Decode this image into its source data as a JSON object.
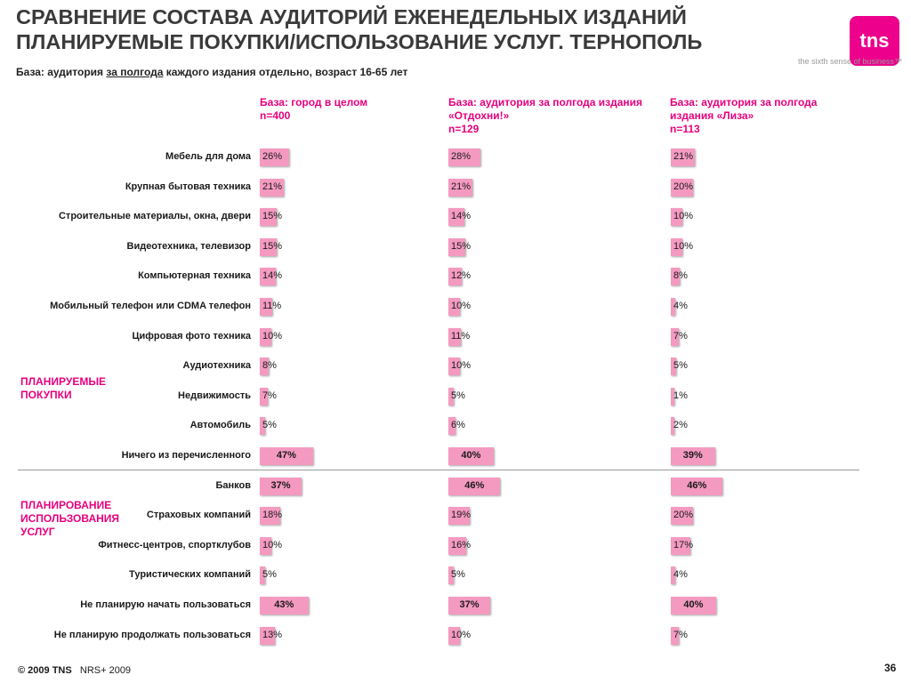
{
  "header": {
    "title_line1": "СРАВНЕНИЕ СОСТАВА АУДИТОРИЙ ЕЖЕНЕДЕЛЬНЫХ ИЗДАНИЙ",
    "title_line2": "ПЛАНИРУЕМЫЕ ПОКУПКИ/ИСПОЛЬЗОВАНИЕ УСЛУГ. ТЕРНОПОЛЬ",
    "subtitle_pre": "База: аудитория",
    "subtitle_underlined": "за полгода",
    "subtitle_post": "каждого издания отдельно, возраст 16-65 лет"
  },
  "brand": {
    "logo_text": "tns",
    "tagline": "the sixth sense of business™",
    "accent_color": "#e6007e",
    "bar_color": "#f49ac1"
  },
  "footer": {
    "copyright": "© 2009 TNS",
    "source": "NRS+ 2009",
    "page_number": "36"
  },
  "chart_data": {
    "type": "bar",
    "orientation": "horizontal",
    "unit": "%",
    "section_labels": [
      {
        "lines": [
          "ПЛАНИРУЕМЫЕ",
          "ПОКУПКИ"
        ]
      },
      {
        "lines": [
          "ПЛАНИРОВАНИЕ",
          "ИСПОЛЬЗОВАНИЯ",
          "УСЛУГ"
        ]
      }
    ],
    "categories": [
      "Мебель для дома",
      "Крупная бытовая техника",
      "Строительные материалы, окна, двери",
      "Видеотехника, телевизор",
      "Компьютерная техника",
      "Мобильный телефон или CDMA телефон",
      "Цифровая фото техника",
      "Аудиотехника",
      "Недвижимость",
      "Автомобиль",
      "Ничего из перечисленного",
      "Банков",
      "Страховых компаний",
      "Фитнесс-центров, спортклубов",
      "Туристических компаний",
      "Не планирую начать пользоваться",
      "Не планирую продолжать пользоваться"
    ],
    "series": [
      {
        "header_lines": [
          "База: город в целом",
          "n=400"
        ],
        "values": [
          26,
          21,
          15,
          15,
          14,
          11,
          10,
          8,
          7,
          5,
          47,
          37,
          18,
          10,
          5,
          43,
          13
        ]
      },
      {
        "header_lines": [
          "База: аудитория за полгода издания",
          "«Отдохни!»",
          "n=129"
        ],
        "values": [
          28,
          21,
          14,
          15,
          12,
          10,
          11,
          10,
          5,
          6,
          40,
          46,
          19,
          16,
          5,
          37,
          10
        ]
      },
      {
        "header_lines": [
          "База: аудитория за полгода",
          "издания «Лиза»",
          "n=113"
        ],
        "values": [
          21,
          20,
          10,
          10,
          8,
          4,
          7,
          5,
          1,
          2,
          39,
          46,
          20,
          17,
          4,
          40,
          7
        ]
      }
    ]
  }
}
